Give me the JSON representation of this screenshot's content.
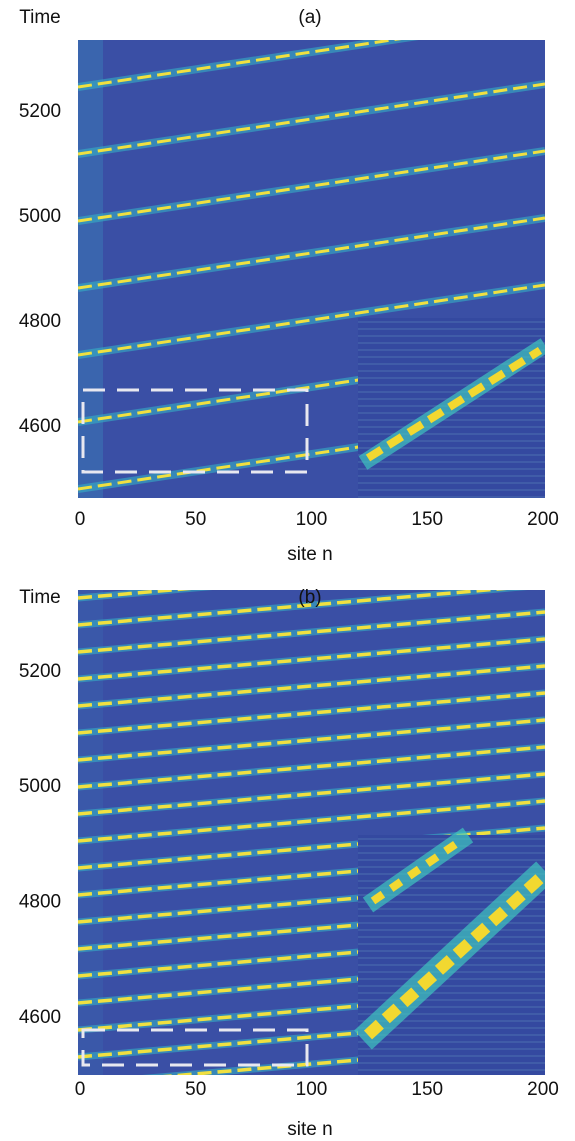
{
  "chart_data": [
    {
      "type": "heatmap",
      "title": "(a)",
      "y_label": "Time",
      "x_label": "site n",
      "xlim": [
        0,
        200
      ],
      "xticks": [
        0,
        50,
        100,
        150,
        200
      ],
      "ylim": [
        4465,
        5337
      ],
      "yticks": [
        4600,
        4800,
        5000,
        5200
      ]
    },
    {
      "type": "heatmap",
      "title": "(b)",
      "y_label": "Time",
      "x_label": "site n",
      "xlim": [
        0,
        200
      ],
      "xticks": [
        0,
        50,
        100,
        150,
        200
      ],
      "ylim": [
        4501,
        5342
      ],
      "yticks": [
        4600,
        4800,
        5000,
        5200
      ]
    }
  ]
}
